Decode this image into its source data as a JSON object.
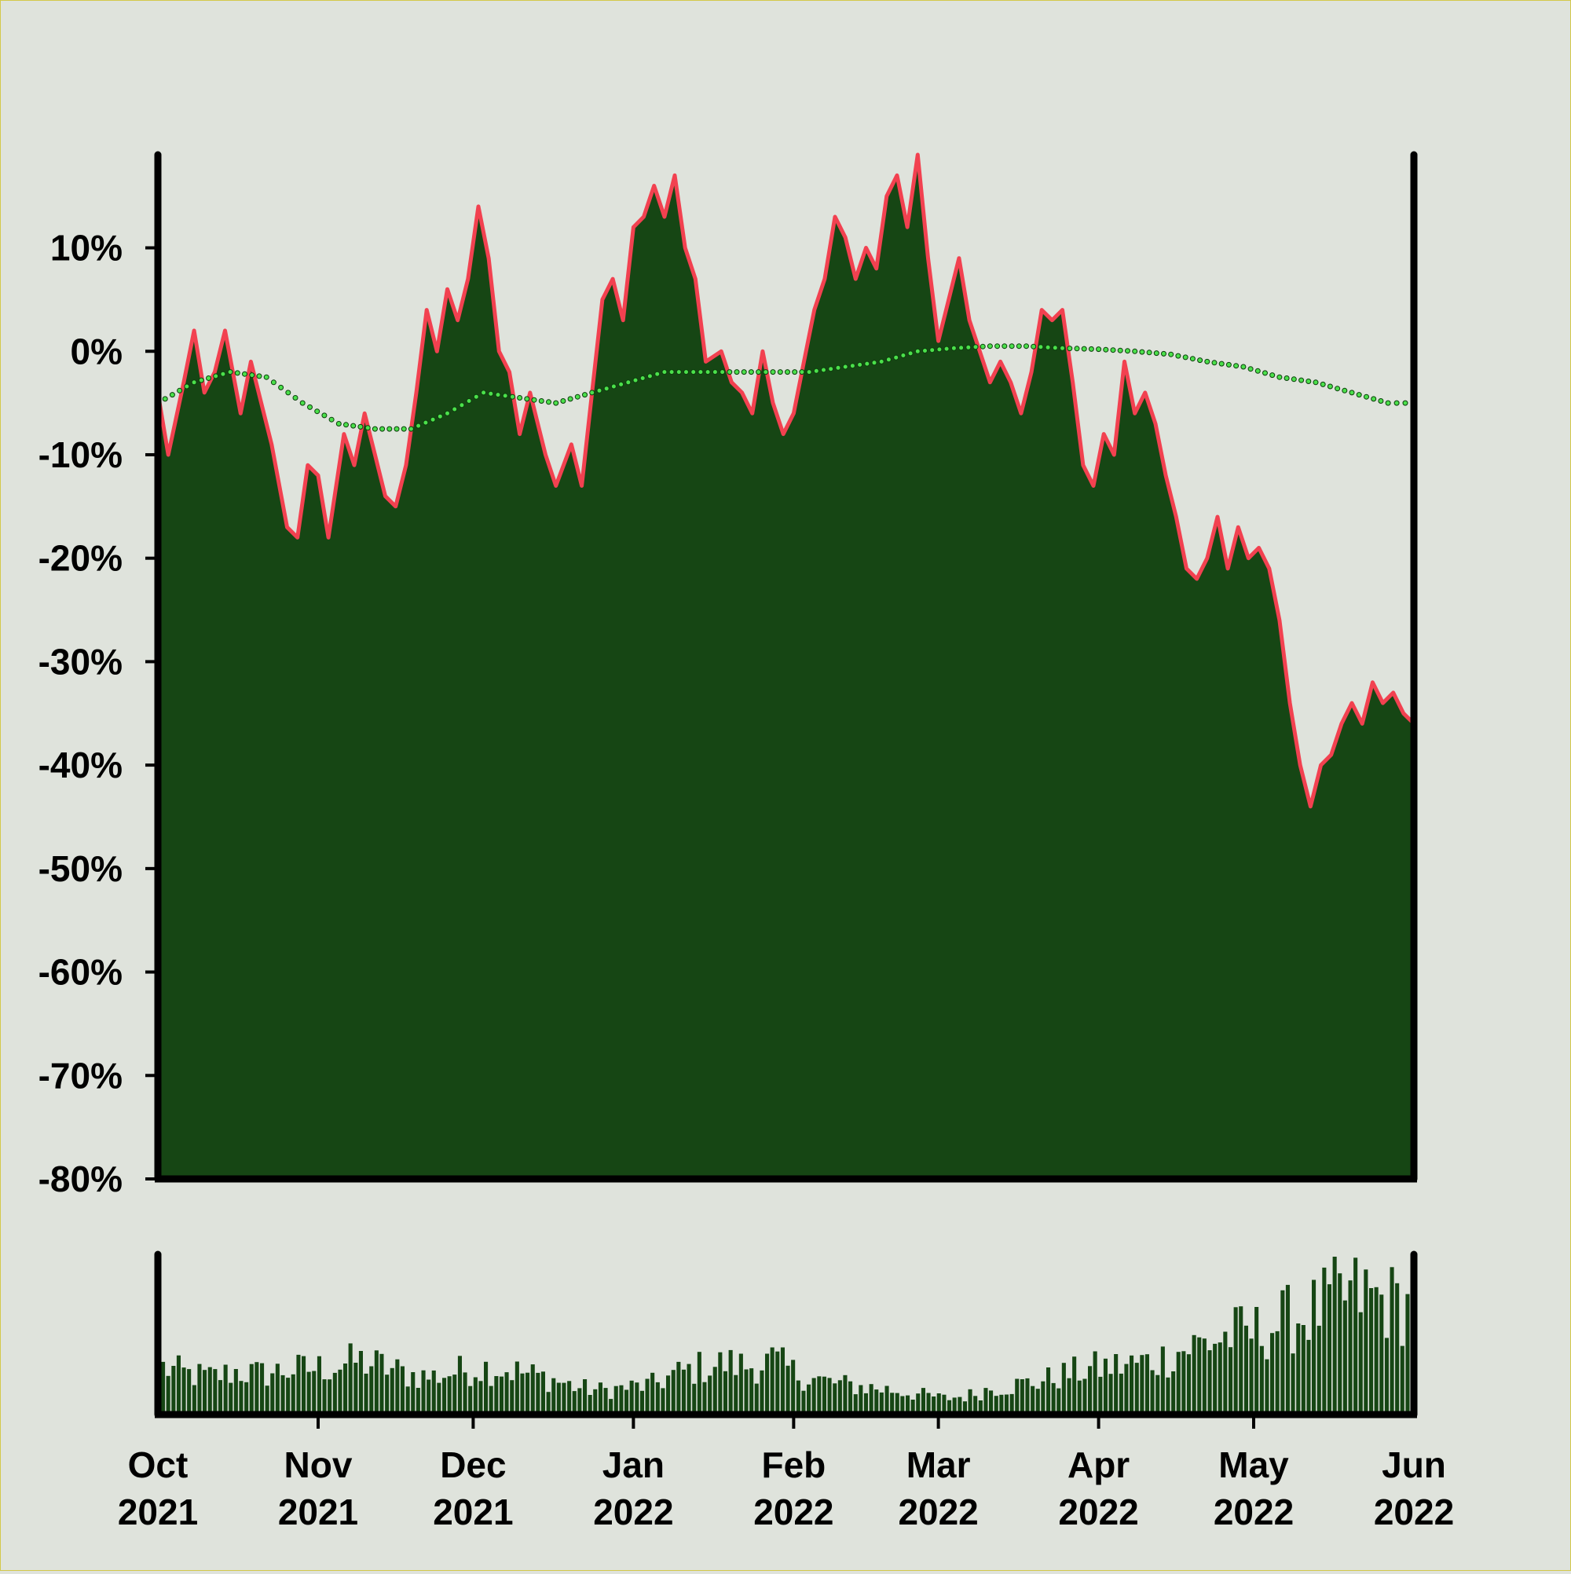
{
  "chart_data": {
    "type": "area",
    "title": "",
    "xlabel": "",
    "ylabel": "",
    "colors": {
      "background": "#dfe3dc",
      "area_fill": "#164614",
      "price_line": "#f24150",
      "moving_average": "#4be04b",
      "volume_bars": "#164614",
      "axes": "#000000"
    },
    "x_range": [
      "2021-10-01",
      "2022-06-01"
    ],
    "x_ticks": [
      {
        "month": "Oct",
        "year": "2021",
        "date": "2021-10-01"
      },
      {
        "month": "Nov",
        "year": "2021",
        "date": "2021-11-01"
      },
      {
        "month": "Dec",
        "year": "2021",
        "date": "2021-12-01"
      },
      {
        "month": "Jan",
        "year": "2022",
        "date": "2022-01-01"
      },
      {
        "month": "Feb",
        "year": "2022",
        "date": "2022-02-01"
      },
      {
        "month": "Mar",
        "year": "2022",
        "date": "2022-03-01"
      },
      {
        "month": "Apr",
        "year": "2022",
        "date": "2022-04-01"
      },
      {
        "month": "May",
        "year": "2022",
        "date": "2022-05-01"
      },
      {
        "month": "Jun",
        "year": "2022",
        "date": "2022-06-01"
      }
    ],
    "y_range": [
      -80,
      19
    ],
    "y_ticks": [
      {
        "value": 10,
        "label": "10%"
      },
      {
        "value": 0,
        "label": "0%"
      },
      {
        "value": -10,
        "label": "-10%"
      },
      {
        "value": -20,
        "label": "-20%"
      },
      {
        "value": -30,
        "label": "-30%"
      },
      {
        "value": -40,
        "label": "-40%"
      },
      {
        "value": -50,
        "label": "-50%"
      },
      {
        "value": -60,
        "label": "-60%"
      },
      {
        "value": -70,
        "label": "-70%"
      },
      {
        "value": -80,
        "label": "-80%"
      }
    ],
    "series": [
      {
        "role": "return",
        "points": [
          [
            "2021-10-01",
            -4
          ],
          [
            "2021-10-03",
            -10
          ],
          [
            "2021-10-06",
            -3
          ],
          [
            "2021-10-08",
            2
          ],
          [
            "2021-10-10",
            -4
          ],
          [
            "2021-10-12",
            -2
          ],
          [
            "2021-10-14",
            2
          ],
          [
            "2021-10-17",
            -6
          ],
          [
            "2021-10-19",
            -1
          ],
          [
            "2021-10-21",
            -5
          ],
          [
            "2021-10-23",
            -9
          ],
          [
            "2021-10-26",
            -17
          ],
          [
            "2021-10-28",
            -18
          ],
          [
            "2021-10-30",
            -11
          ],
          [
            "2021-11-01",
            -12
          ],
          [
            "2021-11-03",
            -18
          ],
          [
            "2021-11-06",
            -8
          ],
          [
            "2021-11-08",
            -11
          ],
          [
            "2021-11-10",
            -6
          ],
          [
            "2021-11-12",
            -10
          ],
          [
            "2021-11-14",
            -14
          ],
          [
            "2021-11-16",
            -15
          ],
          [
            "2021-11-18",
            -11
          ],
          [
            "2021-11-20",
            -4
          ],
          [
            "2021-11-22",
            4
          ],
          [
            "2021-11-24",
            0
          ],
          [
            "2021-11-26",
            6
          ],
          [
            "2021-11-28",
            3
          ],
          [
            "2021-11-30",
            7
          ],
          [
            "2021-12-02",
            14
          ],
          [
            "2021-12-04",
            9
          ],
          [
            "2021-12-06",
            0
          ],
          [
            "2021-12-08",
            -2
          ],
          [
            "2021-12-10",
            -8
          ],
          [
            "2021-12-12",
            -4
          ],
          [
            "2021-12-15",
            -10
          ],
          [
            "2021-12-17",
            -13
          ],
          [
            "2021-12-20",
            -9
          ],
          [
            "2021-12-22",
            -13
          ],
          [
            "2021-12-24",
            -4
          ],
          [
            "2021-12-26",
            5
          ],
          [
            "2021-12-28",
            7
          ],
          [
            "2021-12-30",
            3
          ],
          [
            "2022-01-01",
            12
          ],
          [
            "2022-01-03",
            13
          ],
          [
            "2022-01-05",
            16
          ],
          [
            "2022-01-07",
            13
          ],
          [
            "2022-01-09",
            17
          ],
          [
            "2022-01-11",
            10
          ],
          [
            "2022-01-13",
            7
          ],
          [
            "2022-01-15",
            -1
          ],
          [
            "2022-01-18",
            0
          ],
          [
            "2022-01-20",
            -3
          ],
          [
            "2022-01-22",
            -4
          ],
          [
            "2022-01-24",
            -6
          ],
          [
            "2022-01-26",
            0
          ],
          [
            "2022-01-28",
            -5
          ],
          [
            "2022-01-30",
            -8
          ],
          [
            "2022-02-01",
            -6
          ],
          [
            "2022-02-03",
            -1
          ],
          [
            "2022-02-05",
            4
          ],
          [
            "2022-02-07",
            7
          ],
          [
            "2022-02-09",
            13
          ],
          [
            "2022-02-11",
            11
          ],
          [
            "2022-02-13",
            7
          ],
          [
            "2022-02-15",
            10
          ],
          [
            "2022-02-17",
            8
          ],
          [
            "2022-02-19",
            15
          ],
          [
            "2022-02-21",
            17
          ],
          [
            "2022-02-23",
            12
          ],
          [
            "2022-02-25",
            19
          ],
          [
            "2022-02-27",
            9
          ],
          [
            "2022-03-01",
            1
          ],
          [
            "2022-03-03",
            5
          ],
          [
            "2022-03-05",
            9
          ],
          [
            "2022-03-07",
            3
          ],
          [
            "2022-03-09",
            0
          ],
          [
            "2022-03-11",
            -3
          ],
          [
            "2022-03-13",
            -1
          ],
          [
            "2022-03-15",
            -3
          ],
          [
            "2022-03-17",
            -6
          ],
          [
            "2022-03-19",
            -2
          ],
          [
            "2022-03-21",
            4
          ],
          [
            "2022-03-23",
            3
          ],
          [
            "2022-03-25",
            4
          ],
          [
            "2022-03-27",
            -3
          ],
          [
            "2022-03-29",
            -11
          ],
          [
            "2022-03-31",
            -13
          ],
          [
            "2022-04-02",
            -8
          ],
          [
            "2022-04-04",
            -10
          ],
          [
            "2022-04-06",
            -1
          ],
          [
            "2022-04-08",
            -6
          ],
          [
            "2022-04-10",
            -4
          ],
          [
            "2022-04-12",
            -7
          ],
          [
            "2022-04-14",
            -12
          ],
          [
            "2022-04-16",
            -16
          ],
          [
            "2022-04-18",
            -21
          ],
          [
            "2022-04-20",
            -22
          ],
          [
            "2022-04-22",
            -20
          ],
          [
            "2022-04-24",
            -16
          ],
          [
            "2022-04-26",
            -21
          ],
          [
            "2022-04-28",
            -17
          ],
          [
            "2022-04-30",
            -20
          ],
          [
            "2022-05-02",
            -19
          ],
          [
            "2022-05-04",
            -21
          ],
          [
            "2022-05-06",
            -26
          ],
          [
            "2022-05-08",
            -34
          ],
          [
            "2022-05-10",
            -40
          ],
          [
            "2022-05-12",
            -44
          ],
          [
            "2022-05-14",
            -40
          ],
          [
            "2022-05-16",
            -39
          ],
          [
            "2022-05-18",
            -36
          ],
          [
            "2022-05-20",
            -34
          ],
          [
            "2022-05-22",
            -36
          ],
          [
            "2022-05-24",
            -32
          ],
          [
            "2022-05-26",
            -34
          ],
          [
            "2022-05-28",
            -33
          ],
          [
            "2022-05-30",
            -35
          ],
          [
            "2022-06-01",
            -36
          ]
        ]
      },
      {
        "role": "moving-average",
        "points": [
          [
            "2021-10-01",
            -5
          ],
          [
            "2021-10-08",
            -3
          ],
          [
            "2021-10-15",
            -2
          ],
          [
            "2021-10-22",
            -2.5
          ],
          [
            "2021-10-29",
            -5
          ],
          [
            "2021-11-05",
            -7
          ],
          [
            "2021-11-12",
            -7.5
          ],
          [
            "2021-11-19",
            -7.5
          ],
          [
            "2021-11-26",
            -6
          ],
          [
            "2021-12-03",
            -4
          ],
          [
            "2021-12-10",
            -4.5
          ],
          [
            "2021-12-17",
            -5
          ],
          [
            "2021-12-24",
            -4
          ],
          [
            "2021-12-31",
            -3
          ],
          [
            "2022-01-07",
            -2
          ],
          [
            "2022-01-14",
            -2
          ],
          [
            "2022-01-21",
            -2
          ],
          [
            "2022-01-28",
            -2
          ],
          [
            "2022-02-04",
            -2
          ],
          [
            "2022-02-11",
            -1.5
          ],
          [
            "2022-02-18",
            -1
          ],
          [
            "2022-02-25",
            0
          ],
          [
            "2022-03-04",
            0.3
          ],
          [
            "2022-03-11",
            0.5
          ],
          [
            "2022-03-18",
            0.5
          ],
          [
            "2022-03-25",
            0.3
          ],
          [
            "2022-04-01",
            0.2
          ],
          [
            "2022-04-08",
            0
          ],
          [
            "2022-04-15",
            -0.3
          ],
          [
            "2022-04-22",
            -1
          ],
          [
            "2022-04-29",
            -1.5
          ],
          [
            "2022-05-06",
            -2.5
          ],
          [
            "2022-05-13",
            -3
          ],
          [
            "2022-05-20",
            -4
          ],
          [
            "2022-05-27",
            -5
          ],
          [
            "2022-06-01",
            -5
          ]
        ]
      }
    ],
    "volume": {
      "shown": true,
      "note_levels_relative": "low and steady Oct–Mar, rising through Apr–May, highest in late May",
      "levels": [
        0.35,
        0.3,
        0.28,
        0.32,
        0.3,
        0.33,
        0.34,
        0.36,
        0.4,
        0.36,
        0.3,
        0.28,
        0.32,
        0.35,
        0.34,
        0.3,
        0.26,
        0.2,
        0.18,
        0.2,
        0.22,
        0.3,
        0.35,
        0.38,
        0.36,
        0.4,
        0.3,
        0.25,
        0.22,
        0.2,
        0.18,
        0.15,
        0.12,
        0.14,
        0.2,
        0.22,
        0.25,
        0.3,
        0.34,
        0.36,
        0.38,
        0.42,
        0.5,
        0.55,
        0.6,
        0.62,
        0.7,
        0.75,
        0.85,
        0.9,
        0.85,
        0.8
      ]
    },
    "grid": false,
    "legend": "none"
  }
}
